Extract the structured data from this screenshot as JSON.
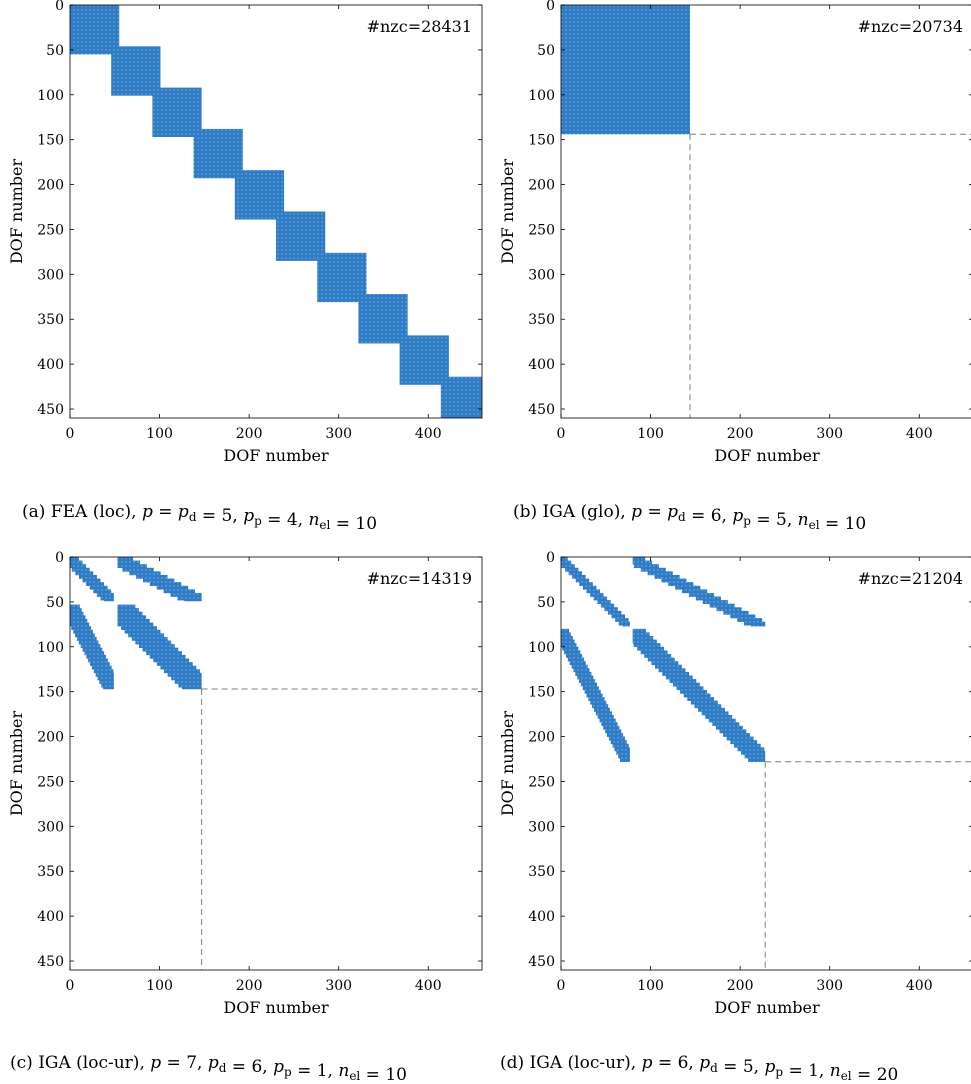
{
  "chart_data": [
    {
      "type": "spy",
      "nzc_label": "#nzc=28431",
      "xlabel": "DOF number",
      "ylabel": "DOF number",
      "xticks": [
        "0",
        "100",
        "200",
        "300",
        "400"
      ],
      "yticks": [
        "0",
        "50",
        "100",
        "150",
        "200",
        "250",
        "300",
        "350",
        "400",
        "450"
      ],
      "xlim": [
        0,
        460
      ],
      "ylim": [
        460,
        0
      ],
      "caption": "(a) FEA (loc), p = p_d = 5, p_p = 4, n_el = 10",
      "dashed_divider": null,
      "blocks": [
        [
          0,
          55,
          0,
          55
        ],
        [
          46,
          101,
          46,
          101
        ],
        [
          92,
          147,
          92,
          147
        ],
        [
          138,
          193,
          138,
          193
        ],
        [
          184,
          239,
          184,
          239
        ],
        [
          230,
          285,
          230,
          285
        ],
        [
          276,
          331,
          276,
          331
        ],
        [
          322,
          377,
          322,
          377
        ],
        [
          368,
          423,
          368,
          423
        ],
        [
          414,
          460,
          414,
          460
        ]
      ],
      "bands": []
    },
    {
      "type": "spy",
      "nzc_label": "#nzc=20734",
      "xlabel": "DOF number",
      "ylabel": "DOF number",
      "xticks": [
        "0",
        "100",
        "200",
        "300",
        "400"
      ],
      "yticks": [
        "0",
        "50",
        "100",
        "150",
        "200",
        "250",
        "300",
        "350",
        "400",
        "450"
      ],
      "xlim": [
        0,
        460
      ],
      "ylim": [
        460,
        0
      ],
      "caption": "(b) IGA (glo), p = p_d = 6, p_p = 5, n_el = 10",
      "dashed_divider": 144,
      "blocks": [
        [
          0,
          144,
          0,
          144
        ]
      ],
      "bands": []
    },
    {
      "type": "spy",
      "nzc_label": "#nzc=14319",
      "xlabel": "DOF number",
      "ylabel": "DOF number",
      "xticks": [
        "0",
        "100",
        "200",
        "300",
        "400"
      ],
      "yticks": [
        "0",
        "50",
        "100",
        "150",
        "200",
        "250",
        "300",
        "350",
        "400",
        "450"
      ],
      "xlim": [
        0,
        460
      ],
      "ylim": [
        460,
        0
      ],
      "caption": "(c) IGA (loc-ur), p = 7, p_d = 6, p_p = 1, n_el = 10",
      "dashed_divider": 147,
      "blocks": [],
      "bands": [
        {
          "rows": [
            0,
            49
          ],
          "cols": [
            0,
            49
          ],
          "width": 20,
          "slope": 1
        },
        {
          "rows": [
            0,
            49
          ],
          "cols": [
            53,
            147
          ],
          "width": 35,
          "slope": 2
        },
        {
          "rows": [
            53,
            147
          ],
          "cols": [
            0,
            49
          ],
          "width": 22,
          "slope": 0.5
        },
        {
          "rows": [
            53,
            147
          ],
          "cols": [
            53,
            147
          ],
          "width": 40,
          "slope": 1
        }
      ]
    },
    {
      "type": "spy",
      "nzc_label": "#nzc=21204",
      "xlabel": "DOF number",
      "ylabel": "DOF number",
      "xticks": [
        "0",
        "100",
        "200",
        "300",
        "400"
      ],
      "yticks": [
        "0",
        "50",
        "100",
        "150",
        "200",
        "250",
        "300",
        "350",
        "400",
        "450"
      ],
      "xlim": [
        0,
        460
      ],
      "ylim": [
        460,
        0
      ],
      "caption": "(d) IGA (loc-ur), p = 6, p_d = 5, p_p = 1, n_el = 20",
      "dashed_divider": 228,
      "blocks": [],
      "bands": [
        {
          "rows": [
            0,
            77
          ],
          "cols": [
            0,
            77
          ],
          "width": 15,
          "slope": 1
        },
        {
          "rows": [
            0,
            77
          ],
          "cols": [
            80,
            228
          ],
          "width": 28,
          "slope": 2
        },
        {
          "rows": [
            80,
            228
          ],
          "cols": [
            0,
            77
          ],
          "width": 18,
          "slope": 0.5
        },
        {
          "rows": [
            80,
            228
          ],
          "cols": [
            80,
            228
          ],
          "width": 30,
          "slope": 1
        }
      ]
    }
  ],
  "colors": {
    "fill": "#2f7bc4",
    "dot": "#4d95d6",
    "divider": "#7f7f7f"
  }
}
